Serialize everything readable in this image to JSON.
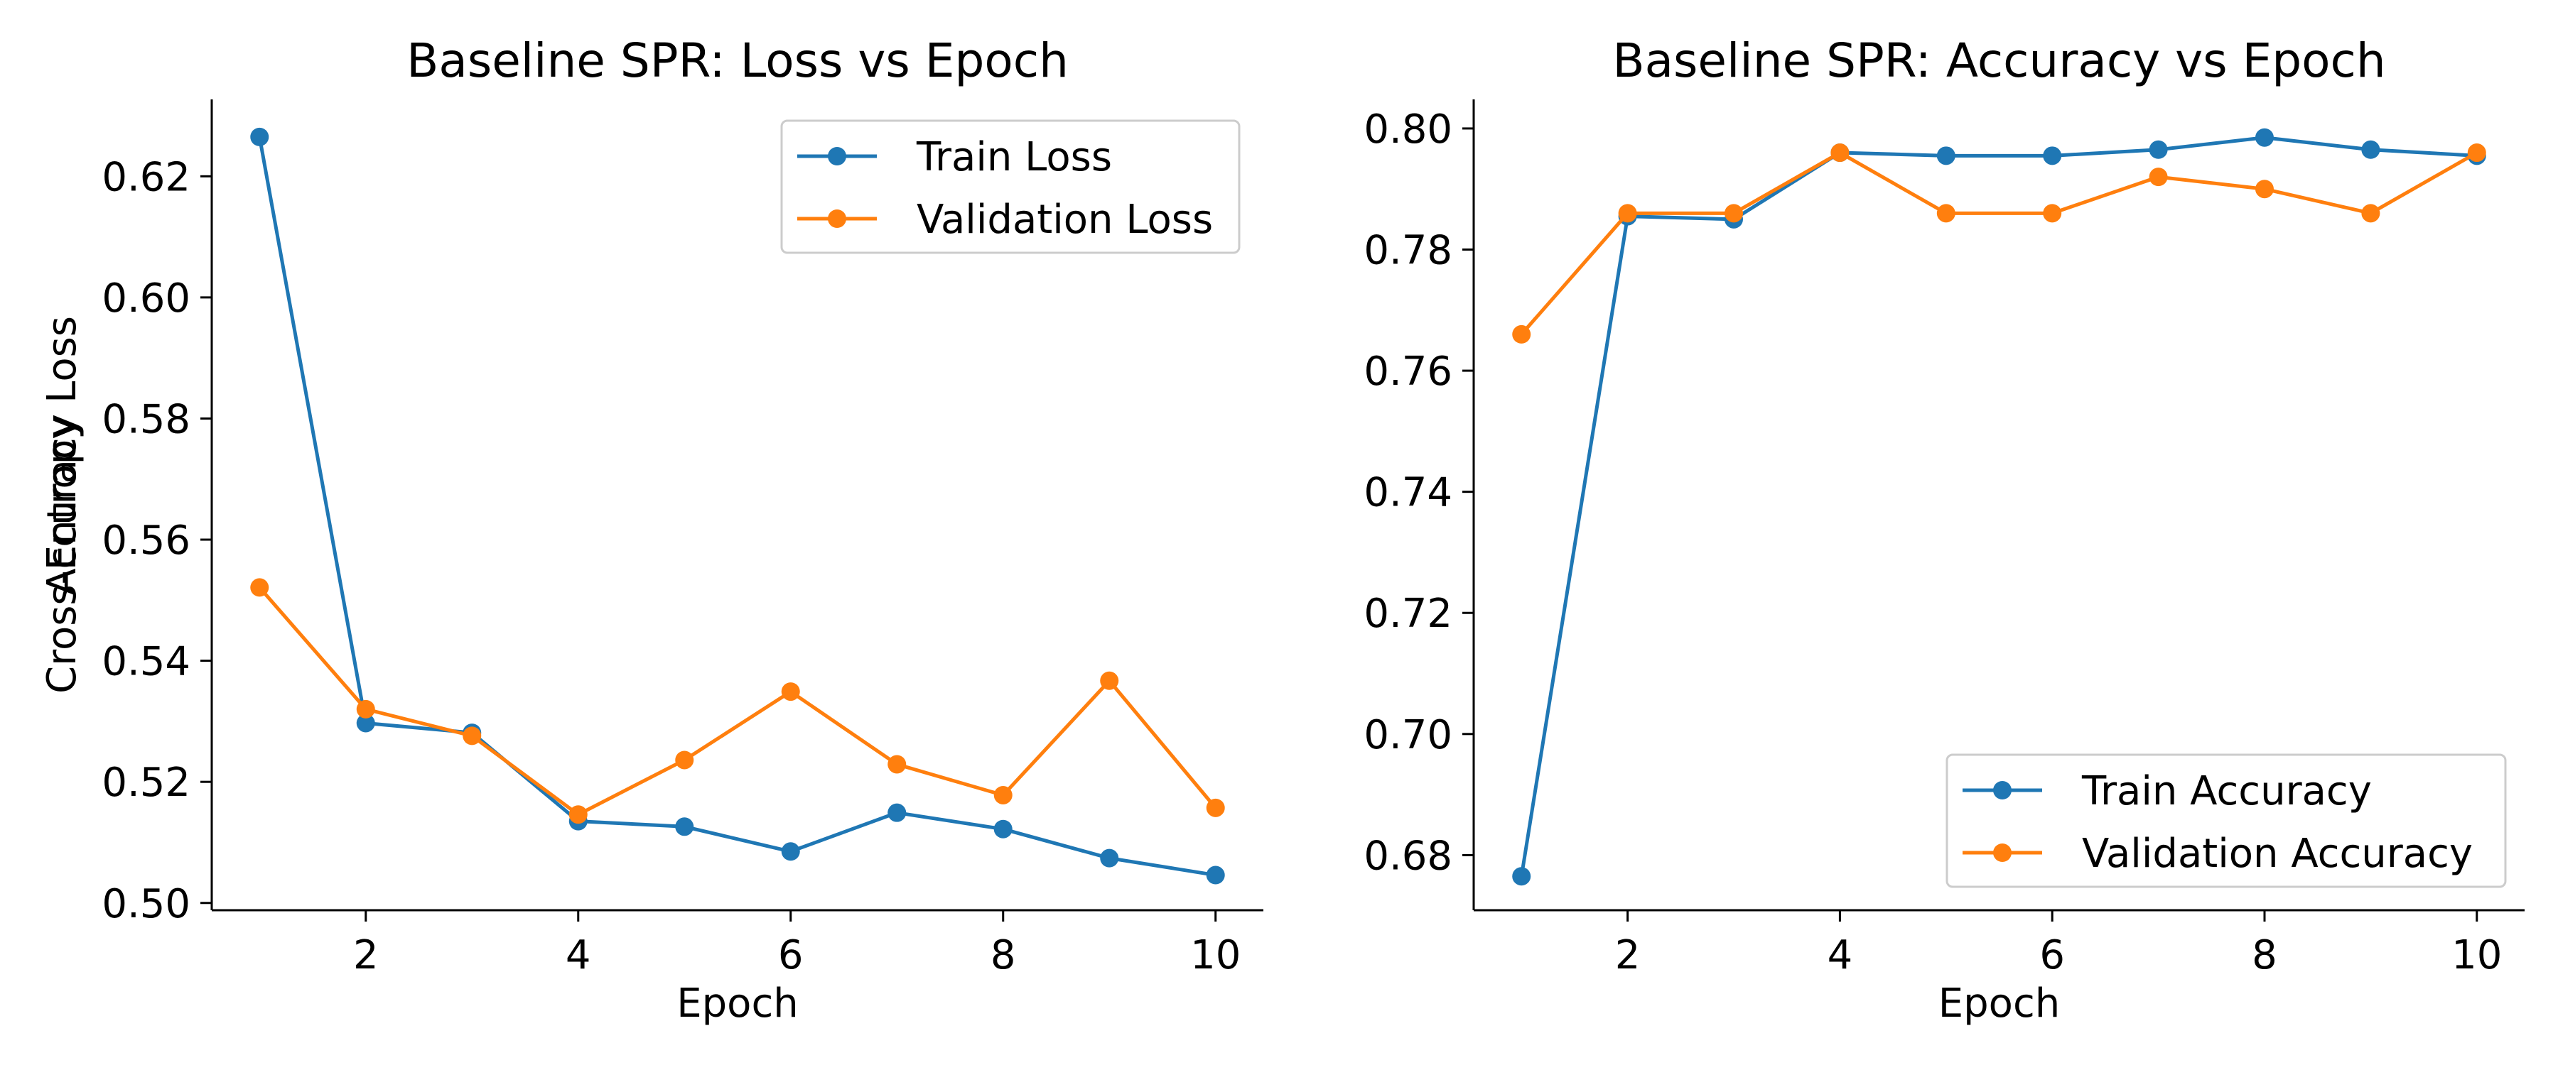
{
  "colors": {
    "train": "#1f77b4",
    "validation": "#ff7f0e",
    "axis": "#000000",
    "background": "#ffffff"
  },
  "chart_data": [
    {
      "type": "line",
      "title": "Baseline SPR: Loss vs Epoch",
      "xlabel": "Epoch",
      "ylabel": "Cross-Entropy Loss",
      "x": [
        1,
        2,
        3,
        4,
        5,
        6,
        7,
        8,
        9,
        10
      ],
      "xlim": [
        0.55,
        10.45
      ],
      "ylim": [
        0.4988,
        0.6327
      ],
      "xticks": [
        2,
        4,
        6,
        8,
        10
      ],
      "yticks": [
        0.5,
        0.52,
        0.54,
        0.56,
        0.58,
        0.6,
        0.62
      ],
      "ytick_decimals": 2,
      "grid": false,
      "legend_position": "upper-right",
      "series": [
        {
          "name": "Train Loss",
          "color": "#1f77b4",
          "values": [
            0.6265,
            0.5297,
            0.5281,
            0.5135,
            0.5126,
            0.5085,
            0.5149,
            0.5122,
            0.5074,
            0.5046
          ]
        },
        {
          "name": "Validation Loss",
          "color": "#ff7f0e",
          "values": [
            0.5521,
            0.532,
            0.5276,
            0.5146,
            0.5236,
            0.5349,
            0.5229,
            0.5178,
            0.5367,
            0.5157
          ]
        }
      ]
    },
    {
      "type": "line",
      "title": "Baseline SPR: Accuracy vs Epoch",
      "xlabel": "Epoch",
      "ylabel": "Accuracy",
      "x": [
        1,
        2,
        3,
        4,
        5,
        6,
        7,
        8,
        9,
        10
      ],
      "xlim": [
        0.55,
        10.45
      ],
      "ylim": [
        0.6709,
        0.8048
      ],
      "xticks": [
        2,
        4,
        6,
        8,
        10
      ],
      "yticks": [
        0.68,
        0.7,
        0.72,
        0.74,
        0.76,
        0.78,
        0.8
      ],
      "ytick_decimals": 2,
      "grid": false,
      "legend_position": "lower-right",
      "series": [
        {
          "name": "Train Accuracy",
          "color": "#1f77b4",
          "values": [
            0.6765,
            0.7855,
            0.785,
            0.796,
            0.7955,
            0.7955,
            0.7965,
            0.7985,
            0.7965,
            0.7955
          ]
        },
        {
          "name": "Validation Accuracy",
          "color": "#ff7f0e",
          "values": [
            0.766,
            0.786,
            0.786,
            0.796,
            0.786,
            0.786,
            0.792,
            0.79,
            0.786,
            0.796
          ]
        }
      ]
    }
  ]
}
